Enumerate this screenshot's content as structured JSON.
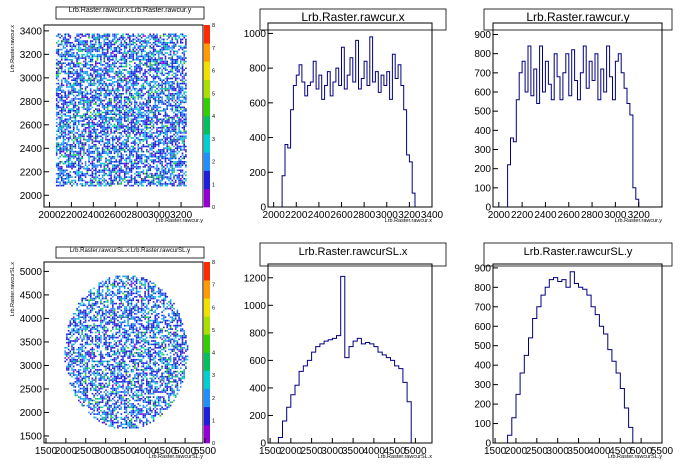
{
  "chart_data": [
    {
      "type": "heatmap",
      "title": "Lrb.Raster.rawcur.x:Lrb.Raster.rawcur.y",
      "xlabel": "Lrb.Raster.rawcur.y",
      "ylabel": "Lrb.Raster.rawcur.x",
      "xlim": [
        1950,
        3400
      ],
      "ylim": [
        1900,
        3450
      ],
      "x_ticks": [
        "2000",
        "2200",
        "2400",
        "2600",
        "2800",
        "3000",
        "3200"
      ],
      "y_ticks": [
        "2000",
        "2200",
        "2400",
        "2600",
        "2800",
        "3000",
        "3200",
        "3400"
      ],
      "region": {
        "shape": "square",
        "x_range": [
          2050,
          3250
        ],
        "y_range": [
          2080,
          3390
        ]
      },
      "density": 0.62,
      "color_scale": {
        "min": 0,
        "max": 8,
        "ticks": [
          "0",
          "1",
          "2",
          "3",
          "4",
          "5",
          "6",
          "7",
          "8"
        ],
        "colors": [
          "#9400d3",
          "#1e1edc",
          "#1e90ff",
          "#00cfcf",
          "#00c060",
          "#30d000",
          "#a8e000",
          "#f0e000",
          "#ff9a00",
          "#ff2a00"
        ]
      }
    },
    {
      "type": "histogram",
      "title": "Lrb.Raster.rawcur.x",
      "xlabel": "Lrb.Raster.rawcur.x",
      "x": [
        2050,
        2075,
        2100,
        2125,
        2150,
        2175,
        2200,
        2225,
        2250,
        2275,
        2300,
        2325,
        2350,
        2375,
        2400,
        2425,
        2450,
        2475,
        2500,
        2525,
        2550,
        2575,
        2600,
        2625,
        2650,
        2675,
        2700,
        2725,
        2750,
        2775,
        2800,
        2825,
        2850,
        2875,
        2900,
        2925,
        2950,
        2975,
        3000,
        3025,
        3050,
        3075,
        3100,
        3125,
        3150,
        3175,
        3200,
        3225,
        3250,
        3275
      ],
      "values": [
        0,
        180,
        360,
        340,
        560,
        700,
        760,
        820,
        720,
        640,
        700,
        720,
        840,
        680,
        760,
        620,
        700,
        780,
        640,
        720,
        800,
        700,
        920,
        680,
        760,
        860,
        720,
        960,
        680,
        740,
        840,
        700,
        980,
        720,
        780,
        660,
        760,
        700,
        780,
        620,
        880,
        740,
        820,
        700,
        560,
        300,
        260,
        80,
        0,
        0
      ],
      "xlim": [
        1950,
        3400
      ],
      "ylim": [
        0,
        1060
      ],
      "x_ticks": [
        "2000",
        "2200",
        "2400",
        "2600",
        "2800",
        "3000",
        "3200",
        "3400"
      ],
      "y_ticks": [
        "0",
        "200",
        "400",
        "600",
        "800",
        "1000"
      ]
    },
    {
      "type": "histogram",
      "title": "Lrb.Raster.rawcur.y",
      "xlabel": "Lrb.Raster.rawcur.y",
      "x": [
        2050,
        2075,
        2100,
        2125,
        2150,
        2175,
        2200,
        2225,
        2250,
        2275,
        2300,
        2325,
        2350,
        2375,
        2400,
        2425,
        2450,
        2475,
        2500,
        2525,
        2550,
        2575,
        2600,
        2625,
        2650,
        2675,
        2700,
        2725,
        2750,
        2775,
        2800,
        2825,
        2850,
        2875,
        2900,
        2925,
        2950,
        2975,
        3000,
        3025,
        3050,
        3075,
        3100,
        3125,
        3150,
        3175,
        3200,
        3225,
        3250
      ],
      "values": [
        0,
        220,
        360,
        340,
        560,
        700,
        760,
        600,
        840,
        580,
        720,
        540,
        840,
        600,
        760,
        640,
        560,
        800,
        680,
        560,
        700,
        800,
        580,
        820,
        660,
        560,
        700,
        840,
        620,
        760,
        660,
        800,
        560,
        720,
        600,
        840,
        680,
        560,
        760,
        800,
        700,
        620,
        540,
        480,
        100,
        40,
        0,
        0,
        0
      ],
      "xlim": [
        1950,
        3400
      ],
      "ylim": [
        0,
        960
      ],
      "x_ticks": [
        "2000",
        "2200",
        "2400",
        "2600",
        "2800",
        "3000",
        "3200"
      ],
      "y_ticks": [
        "0",
        "100",
        "200",
        "300",
        "400",
        "500",
        "600",
        "700",
        "800",
        "900"
      ]
    },
    {
      "type": "heatmap",
      "title": "Lrb.Raster.rawcurSL.x:Lrb.Raster.rawcurSL.y",
      "xlabel": "Lrb.Raster.rawcurSL.y",
      "ylabel": "Lrb.Raster.rawcurSL.x",
      "xlim": [
        1450,
        5450
      ],
      "ylim": [
        1350,
        5200
      ],
      "x_ticks": [
        "1500",
        "2000",
        "2500",
        "3000",
        "3500",
        "4000",
        "4500",
        "5000",
        "5500"
      ],
      "y_ticks": [
        "1500",
        "2000",
        "2500",
        "3000",
        "3500",
        "4000",
        "4500",
        "5000"
      ],
      "region": {
        "shape": "circle",
        "center": [
          3500,
          3300
        ],
        "radius_x": 1550,
        "radius_y": 1640
      },
      "density": 0.55,
      "color_scale": {
        "min": 0,
        "max": 8,
        "ticks": [
          "0",
          "1",
          "2",
          "3",
          "4",
          "5",
          "6",
          "7",
          "8"
        ],
        "colors": [
          "#9400d3",
          "#1e1edc",
          "#1e90ff",
          "#00cfcf",
          "#00c060",
          "#30d000",
          "#a8e000",
          "#f0e000",
          "#ff9a00",
          "#ff2a00"
        ]
      }
    },
    {
      "type": "histogram",
      "title": "Lrb.Raster.rawcurSL.x",
      "xlabel": "Lrb.Raster.rawcurSL.x",
      "x": [
        1700,
        1800,
        1900,
        2000,
        2100,
        2200,
        2300,
        2400,
        2500,
        2600,
        2700,
        2800,
        2900,
        3000,
        3100,
        3200,
        3300,
        3400,
        3500,
        3600,
        3700,
        3800,
        3900,
        4000,
        4100,
        4200,
        4300,
        4400,
        4500,
        4600,
        4700,
        4800,
        4900
      ],
      "values": [
        40,
        160,
        260,
        350,
        420,
        520,
        560,
        600,
        660,
        700,
        720,
        740,
        750,
        760,
        780,
        1210,
        620,
        700,
        740,
        760,
        720,
        730,
        720,
        700,
        660,
        640,
        620,
        600,
        560,
        540,
        440,
        300,
        0
      ],
      "xlim": [
        1450,
        5400
      ],
      "ylim": [
        0,
        1300
      ],
      "x_ticks": [
        "1500",
        "2000",
        "2500",
        "3000",
        "3500",
        "4000",
        "4500",
        "5000"
      ],
      "y_ticks": [
        "0",
        "200",
        "400",
        "600",
        "800",
        "1000",
        "1200"
      ]
    },
    {
      "type": "histogram",
      "title": "Lrb.Raster.rawcurSL.y",
      "xlabel": "Lrb.Raster.rawcurSL.y",
      "x": [
        1800,
        1900,
        2000,
        2100,
        2200,
        2300,
        2400,
        2500,
        2600,
        2700,
        2800,
        2900,
        3000,
        3100,
        3200,
        3300,
        3400,
        3500,
        3600,
        3700,
        3800,
        3900,
        4000,
        4100,
        4200,
        4300,
        4400,
        4500,
        4600,
        4700,
        4800,
        4900,
        5000
      ],
      "values": [
        40,
        130,
        250,
        360,
        450,
        540,
        640,
        700,
        760,
        800,
        840,
        850,
        830,
        840,
        800,
        880,
        820,
        800,
        790,
        760,
        700,
        660,
        600,
        560,
        480,
        420,
        360,
        280,
        180,
        80,
        0,
        0,
        0
      ],
      "xlim": [
        1450,
        5500
      ],
      "ylim": [
        0,
        920
      ],
      "x_ticks": [
        "1500",
        "2000",
        "2500",
        "3000",
        "3500",
        "4000",
        "4500",
        "5000",
        "5500"
      ],
      "y_ticks": [
        "0",
        "100",
        "200",
        "300",
        "400",
        "500",
        "600",
        "700",
        "800",
        "900"
      ]
    }
  ]
}
